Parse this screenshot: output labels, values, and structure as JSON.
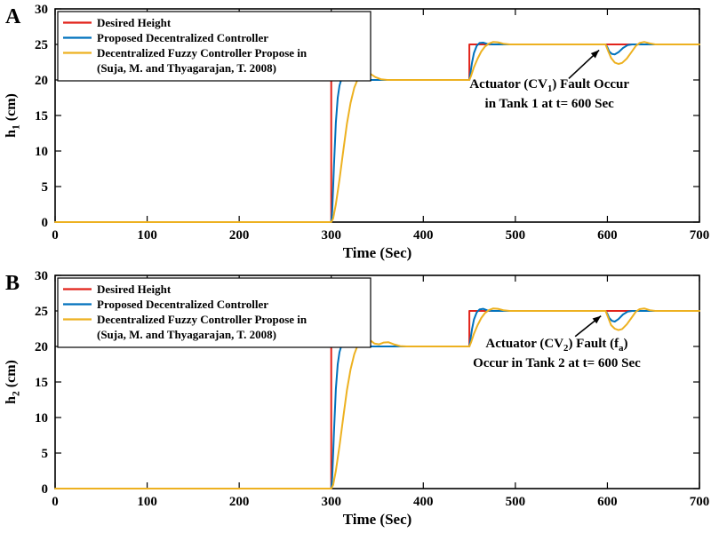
{
  "figure": {
    "background": "#ffffff",
    "axis_color": "#000000",
    "colors": {
      "desired": "#e2231a",
      "proposed": "#0072bd",
      "fuzzy": "#edb120"
    }
  },
  "chart_data": [
    {
      "type": "line",
      "panel_label": "A",
      "xlabel": "Time (Sec)",
      "ylabel": "h_{1} (cm)",
      "xlim": [
        0,
        700
      ],
      "ylim": [
        0,
        30
      ],
      "xticks": [
        0,
        100,
        200,
        300,
        400,
        500,
        600,
        700
      ],
      "yticks": [
        0,
        5,
        10,
        15,
        20,
        25,
        30
      ],
      "grid": false,
      "legend_position": "top-left",
      "legend": [
        {
          "color": "desired",
          "lines": [
            "Desired Height"
          ]
        },
        {
          "color": "proposed",
          "lines": [
            "Proposed Decentralized Controller"
          ]
        },
        {
          "color": "fuzzy",
          "lines": [
            "Decentralized Fuzzy Controller Propose in",
            "(Suja, M. and Thyagarajan, T. 2008)"
          ]
        }
      ],
      "annotation": {
        "lines": [
          "Actuator (CV_{1}) Fault Occur",
          "in Tank 1 at t= 600 Sec"
        ],
        "text_x": 537,
        "text_y_first_line": 18.9,
        "line_spacing": 2.8,
        "arrow_from": [
          558,
          20.2
        ],
        "arrow_to": [
          591,
          24.2
        ]
      },
      "series": [
        {
          "id": "desired",
          "name": "Desired Height",
          "color": "desired",
          "points": [
            [
              0,
              0
            ],
            [
              300,
              0
            ],
            [
              300,
              20
            ],
            [
              450,
              20
            ],
            [
              450,
              25
            ],
            [
              700,
              25
            ]
          ]
        },
        {
          "id": "proposed",
          "name": "Proposed Decentralized Controller",
          "color": "proposed",
          "points": [
            [
              0,
              0
            ],
            [
              300,
              0
            ],
            [
              301,
              1.5
            ],
            [
              303,
              8
            ],
            [
              305,
              14
            ],
            [
              307,
              17.5
            ],
            [
              309,
              19.2
            ],
            [
              311,
              20.1
            ],
            [
              314,
              20.45
            ],
            [
              318,
              20.3
            ],
            [
              323,
              20.05
            ],
            [
              330,
              20
            ],
            [
              450,
              20
            ],
            [
              451,
              20.8
            ],
            [
              453,
              22.5
            ],
            [
              455,
              23.8
            ],
            [
              458,
              24.8
            ],
            [
              461,
              25.2
            ],
            [
              465,
              25.25
            ],
            [
              470,
              25.05
            ],
            [
              476,
              25
            ],
            [
              598,
              25
            ],
            [
              600,
              24.6
            ],
            [
              602,
              24.0
            ],
            [
              605,
              23.65
            ],
            [
              608,
              23.6
            ],
            [
              612,
              23.9
            ],
            [
              617,
              24.5
            ],
            [
              622,
              24.9
            ],
            [
              627,
              25
            ],
            [
              700,
              25
            ]
          ]
        },
        {
          "id": "fuzzy",
          "name": "Decentralized Fuzzy Controller Propose in (Suja, M. and Thyagarajan, T. 2008)",
          "color": "fuzzy",
          "points": [
            [
              0,
              0
            ],
            [
              300,
              0
            ],
            [
              302,
              0.5
            ],
            [
              305,
              2.5
            ],
            [
              309,
              6
            ],
            [
              313,
              10
            ],
            [
              317,
              13.8
            ],
            [
              321,
              16.8
            ],
            [
              325,
              18.9
            ],
            [
              329,
              20.2
            ],
            [
              333,
              20.9
            ],
            [
              337,
              21.1
            ],
            [
              342,
              20.9
            ],
            [
              348,
              20.4
            ],
            [
              354,
              20.1
            ],
            [
              361,
              20
            ],
            [
              450,
              20
            ],
            [
              452,
              20.6
            ],
            [
              455,
              21.8
            ],
            [
              459,
              23
            ],
            [
              463,
              24
            ],
            [
              467,
              24.7
            ],
            [
              471,
              25.1
            ],
            [
              476,
              25.35
            ],
            [
              481,
              25.3
            ],
            [
              487,
              25.1
            ],
            [
              494,
              25
            ],
            [
              598,
              25
            ],
            [
              601,
              24
            ],
            [
              604,
              23.1
            ],
            [
              608,
              22.45
            ],
            [
              612,
              22.25
            ],
            [
              616,
              22.4
            ],
            [
              621,
              23
            ],
            [
              626,
              23.9
            ],
            [
              631,
              24.8
            ],
            [
              635,
              25.2
            ],
            [
              640,
              25.35
            ],
            [
              646,
              25.15
            ],
            [
              652,
              25
            ],
            [
              700,
              25
            ]
          ]
        }
      ]
    },
    {
      "type": "line",
      "panel_label": "B",
      "xlabel": "Time (Sec)",
      "ylabel": "h_{2} (cm)",
      "xlim": [
        0,
        700
      ],
      "ylim": [
        0,
        30
      ],
      "xticks": [
        0,
        100,
        200,
        300,
        400,
        500,
        600,
        700
      ],
      "yticks": [
        0,
        5,
        10,
        15,
        20,
        25,
        30
      ],
      "grid": false,
      "legend_position": "top-left",
      "legend": [
        {
          "color": "desired",
          "lines": [
            "Desired Height"
          ]
        },
        {
          "color": "proposed",
          "lines": [
            "Proposed Decentralized Controller"
          ]
        },
        {
          "color": "fuzzy",
          "lines": [
            "Decentralized Fuzzy Controller Propose in",
            "(Suja, M. and Thyagarajan, T. 2008)"
          ]
        }
      ],
      "annotation": {
        "lines": [
          "Actuator (CV_{2}) Fault (f_{a})",
          "Occur in Tank 2 at t= 600 Sec"
        ],
        "text_x": 545,
        "text_y_first_line": 19.9,
        "line_spacing": 2.8,
        "arrow_from": [
          565,
          21.4
        ],
        "arrow_to": [
          593,
          24.3
        ]
      },
      "series": [
        {
          "id": "desired",
          "name": "Desired Height",
          "color": "desired",
          "points": [
            [
              0,
              0
            ],
            [
              300,
              0
            ],
            [
              300,
              20
            ],
            [
              450,
              20
            ],
            [
              450,
              25
            ],
            [
              700,
              25
            ]
          ]
        },
        {
          "id": "proposed",
          "name": "Proposed Decentralized Controller",
          "color": "proposed",
          "points": [
            [
              0,
              0
            ],
            [
              300,
              0
            ],
            [
              301,
              1.5
            ],
            [
              303,
              8
            ],
            [
              305,
              14
            ],
            [
              307,
              17.5
            ],
            [
              309,
              19.2
            ],
            [
              311,
              20.1
            ],
            [
              314,
              20.5
            ],
            [
              318,
              20.35
            ],
            [
              323,
              20.05
            ],
            [
              330,
              20
            ],
            [
              450,
              20
            ],
            [
              451,
              20.8
            ],
            [
              453,
              22.5
            ],
            [
              455,
              23.8
            ],
            [
              458,
              24.8
            ],
            [
              461,
              25.2
            ],
            [
              465,
              25.3
            ],
            [
              470,
              25.05
            ],
            [
              476,
              25
            ],
            [
              598,
              25
            ],
            [
              600,
              24.6
            ],
            [
              602,
              24.0
            ],
            [
              605,
              23.6
            ],
            [
              608,
              23.5
            ],
            [
              612,
              23.85
            ],
            [
              617,
              24.5
            ],
            [
              622,
              24.9
            ],
            [
              627,
              25
            ],
            [
              700,
              25
            ]
          ]
        },
        {
          "id": "fuzzy",
          "name": "Decentralized Fuzzy Controller Propose in (Suja, M. and Thyagarajan, T. 2008)",
          "color": "fuzzy",
          "points": [
            [
              0,
              0
            ],
            [
              300,
              0
            ],
            [
              302,
              0.5
            ],
            [
              305,
              2.5
            ],
            [
              309,
              6
            ],
            [
              313,
              10
            ],
            [
              317,
              13.8
            ],
            [
              321,
              16.8
            ],
            [
              325,
              18.9
            ],
            [
              329,
              20.3
            ],
            [
              333,
              21
            ],
            [
              337,
              21.2
            ],
            [
              342,
              20.9
            ],
            [
              347,
              20.4
            ],
            [
              352,
              20.3
            ],
            [
              357,
              20.55
            ],
            [
              362,
              20.6
            ],
            [
              368,
              20.3
            ],
            [
              375,
              20.05
            ],
            [
              382,
              20
            ],
            [
              450,
              20
            ],
            [
              452,
              20.6
            ],
            [
              455,
              21.8
            ],
            [
              459,
              23
            ],
            [
              463,
              24
            ],
            [
              467,
              24.7
            ],
            [
              471,
              25.1
            ],
            [
              476,
              25.35
            ],
            [
              481,
              25.3
            ],
            [
              487,
              25.1
            ],
            [
              494,
              25
            ],
            [
              598,
              25
            ],
            [
              601,
              24
            ],
            [
              604,
              23
            ],
            [
              608,
              22.5
            ],
            [
              612,
              22.3
            ],
            [
              616,
              22.45
            ],
            [
              621,
              23.1
            ],
            [
              626,
              24
            ],
            [
              631,
              24.9
            ],
            [
              635,
              25.25
            ],
            [
              640,
              25.35
            ],
            [
              646,
              25.1
            ],
            [
              652,
              25
            ],
            [
              700,
              25
            ]
          ]
        }
      ]
    }
  ]
}
